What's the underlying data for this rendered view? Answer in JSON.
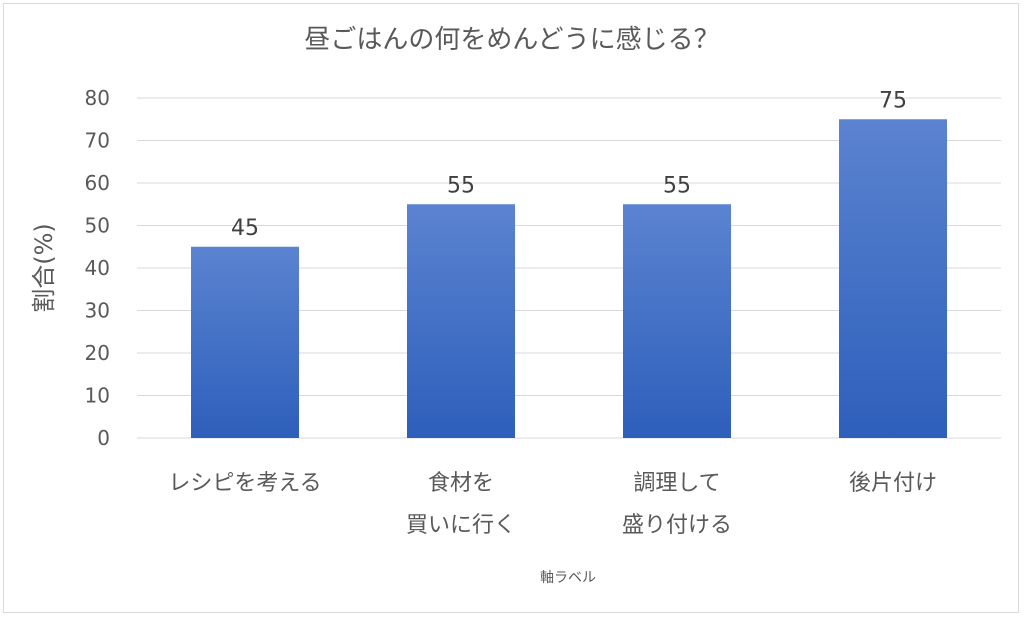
{
  "chart_data": {
    "type": "bar",
    "title": "昼ごはんの何をめんどうに感じる？",
    "ylabel": "割合(%)",
    "xlabel": "軸ラベル",
    "categories": [
      [
        "レシピを考える"
      ],
      [
        "食材を",
        "買いに行く"
      ],
      [
        "調理して",
        "盛り付ける"
      ],
      [
        "後片付け"
      ]
    ],
    "values": [
      45,
      55,
      55,
      75
    ],
    "ylim": [
      0,
      80
    ],
    "yticks": [
      0,
      10,
      20,
      30,
      40,
      50,
      60,
      70,
      80
    ],
    "grid": true,
    "legend": "none",
    "colors": {
      "bar_top": "#5b83d0",
      "bar_bottom": "#2d5fbb",
      "grid": "#d9d9d9",
      "axis_text": "#595959"
    }
  }
}
